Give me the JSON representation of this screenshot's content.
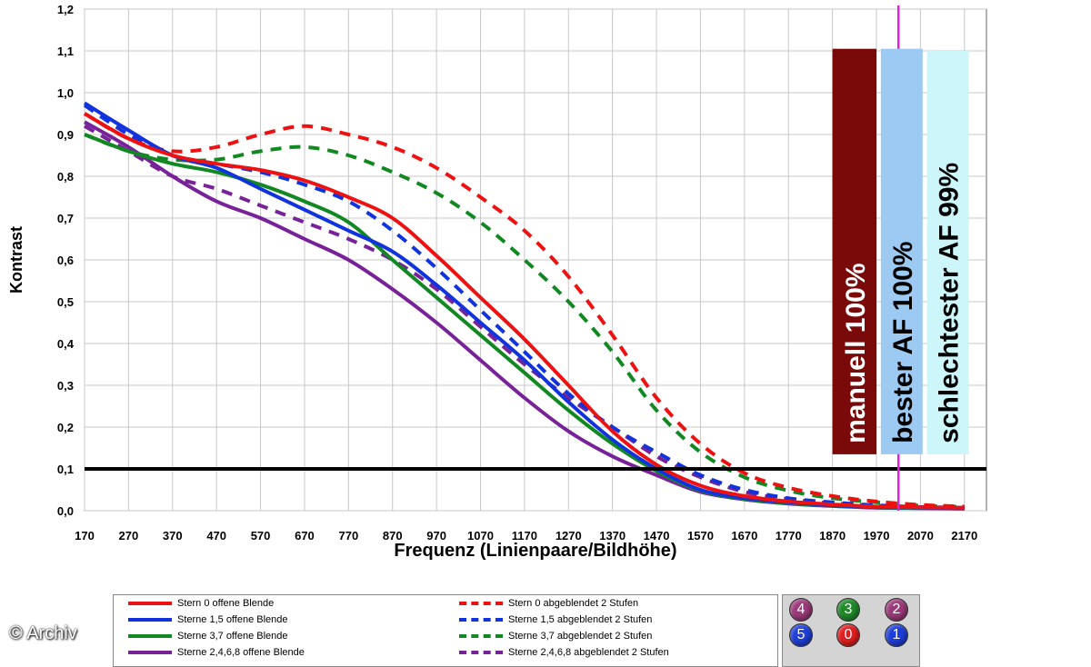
{
  "chart_data": {
    "type": "line",
    "title": "",
    "xlabel": "Frequenz (Linienpaare/Bildhöhe)",
    "ylabel": "Kontrast",
    "xlim": [
      170,
      2220
    ],
    "ylim": [
      0,
      1.2
    ],
    "x_ticks": [
      170,
      270,
      370,
      470,
      570,
      670,
      770,
      870,
      970,
      1070,
      1170,
      1270,
      1370,
      1470,
      1570,
      1670,
      1770,
      1870,
      1970,
      2070,
      2170
    ],
    "y_ticks": [
      "0,0",
      "0,1",
      "0,2",
      "0,3",
      "0,4",
      "0,5",
      "0,6",
      "0,7",
      "0,8",
      "0,9",
      "1,0",
      "1,1",
      "1,2"
    ],
    "grid": true,
    "threshold_line": 0.1,
    "vertical_marker": 2020,
    "series": [
      {
        "name": "Stern 0 offene Blende",
        "color": "#ee1111",
        "dash": false,
        "x": [
          170,
          270,
          370,
          470,
          570,
          670,
          770,
          870,
          970,
          1070,
          1170,
          1270,
          1370,
          1470,
          1570,
          1670,
          1770,
          1870,
          1970,
          2070,
          2170
        ],
        "y": [
          0.95,
          0.89,
          0.85,
          0.83,
          0.815,
          0.79,
          0.75,
          0.7,
          0.61,
          0.51,
          0.41,
          0.3,
          0.19,
          0.11,
          0.06,
          0.035,
          0.022,
          0.015,
          0.01,
          0.008,
          0.007
        ]
      },
      {
        "name": "Sterne 1,5 offene Blende",
        "color": "#1133dd",
        "dash": false,
        "x": [
          170,
          270,
          370,
          470,
          570,
          670,
          770,
          870,
          970,
          1070,
          1170,
          1270,
          1370,
          1470,
          1570,
          1670,
          1770,
          1870,
          1970,
          2070,
          2170
        ],
        "y": [
          0.975,
          0.91,
          0.85,
          0.82,
          0.77,
          0.72,
          0.67,
          0.62,
          0.54,
          0.45,
          0.36,
          0.26,
          0.17,
          0.1,
          0.05,
          0.03,
          0.02,
          0.013,
          0.009,
          0.007,
          0.006
        ]
      },
      {
        "name": "Sterne 3,7 offene Blende",
        "color": "#118822",
        "dash": false,
        "x": [
          170,
          270,
          370,
          470,
          570,
          670,
          770,
          870,
          970,
          1070,
          1170,
          1270,
          1370,
          1470,
          1570,
          1670,
          1770,
          1870,
          1970,
          2070,
          2170
        ],
        "y": [
          0.9,
          0.86,
          0.83,
          0.81,
          0.78,
          0.74,
          0.69,
          0.6,
          0.51,
          0.42,
          0.33,
          0.24,
          0.16,
          0.095,
          0.048,
          0.028,
          0.018,
          0.012,
          0.008,
          0.006,
          0.005
        ]
      },
      {
        "name": "Sterne 2,4,6,8 offene Blende",
        "color": "#772299",
        "dash": false,
        "x": [
          170,
          270,
          370,
          470,
          570,
          670,
          770,
          870,
          970,
          1070,
          1170,
          1270,
          1370,
          1470,
          1570,
          1670,
          1770,
          1870,
          1970,
          2070,
          2170
        ],
        "y": [
          0.93,
          0.87,
          0.8,
          0.74,
          0.7,
          0.65,
          0.6,
          0.53,
          0.45,
          0.36,
          0.27,
          0.19,
          0.13,
          0.085,
          0.045,
          0.027,
          0.017,
          0.011,
          0.007,
          0.006,
          0.005
        ]
      },
      {
        "name": "Stern 0 abgeblendet 2 Stufen",
        "color": "#ee1111",
        "dash": true,
        "x": [
          170,
          270,
          370,
          470,
          570,
          670,
          770,
          870,
          970,
          1070,
          1170,
          1270,
          1370,
          1470,
          1570,
          1670,
          1770,
          1870,
          1970,
          2070,
          2170
        ],
        "y": [
          0.95,
          0.89,
          0.86,
          0.87,
          0.9,
          0.92,
          0.9,
          0.87,
          0.82,
          0.75,
          0.67,
          0.56,
          0.42,
          0.27,
          0.16,
          0.09,
          0.055,
          0.035,
          0.022,
          0.014,
          0.01
        ]
      },
      {
        "name": "Sterne 1,5 abgeblendet 2 Stufen",
        "color": "#1133dd",
        "dash": true,
        "x": [
          170,
          270,
          370,
          470,
          570,
          670,
          770,
          870,
          970,
          1070,
          1170,
          1270,
          1370,
          1470,
          1570,
          1670,
          1770,
          1870,
          1970,
          2070,
          2170
        ],
        "y": [
          0.97,
          0.9,
          0.85,
          0.83,
          0.81,
          0.78,
          0.74,
          0.67,
          0.58,
          0.48,
          0.38,
          0.28,
          0.2,
          0.14,
          0.085,
          0.05,
          0.03,
          0.02,
          0.013,
          0.009,
          0.007
        ]
      },
      {
        "name": "Sterne 3,7 abgeblendet 2 Stufen",
        "color": "#118822",
        "dash": true,
        "x": [
          170,
          270,
          370,
          470,
          570,
          670,
          770,
          870,
          970,
          1070,
          1170,
          1270,
          1370,
          1470,
          1570,
          1670,
          1770,
          1870,
          1970,
          2070,
          2170
        ],
        "y": [
          0.9,
          0.86,
          0.84,
          0.84,
          0.86,
          0.87,
          0.85,
          0.81,
          0.76,
          0.69,
          0.6,
          0.5,
          0.38,
          0.24,
          0.14,
          0.08,
          0.048,
          0.03,
          0.02,
          0.012,
          0.009
        ]
      },
      {
        "name": "Sterne 2,4,6,8 abgeblendet 2 Stufen",
        "color": "#772299",
        "dash": true,
        "x": [
          170,
          270,
          370,
          470,
          570,
          670,
          770,
          870,
          970,
          1070,
          1170,
          1270,
          1370,
          1470,
          1570,
          1670,
          1770,
          1870,
          1970,
          2070,
          2170
        ],
        "y": [
          0.92,
          0.86,
          0.8,
          0.77,
          0.73,
          0.69,
          0.65,
          0.6,
          0.53,
          0.44,
          0.35,
          0.27,
          0.2,
          0.13,
          0.08,
          0.045,
          0.028,
          0.018,
          0.012,
          0.008,
          0.006
        ]
      }
    ],
    "bars": [
      {
        "label": "manuell 100%",
        "x_start": 1870,
        "x_end": 1970,
        "y_top": 1.105,
        "y_bottom": 0.135,
        "fill": "#7a0a0a",
        "text_color": "#ffffff"
      },
      {
        "label": "bester AF 100%",
        "x_start": 1980,
        "x_end": 2075,
        "y_top": 1.105,
        "y_bottom": 0.135,
        "fill": "#9dcaf2",
        "text_color": "#000000"
      },
      {
        "label": "schlechtester AF 99%",
        "x_start": 2085,
        "x_end": 2180,
        "y_top": 1.1,
        "y_bottom": 0.135,
        "fill": "#ccf6fa",
        "text_color": "#000000"
      }
    ]
  },
  "stars": [
    {
      "label": "4",
      "color": "#9b3a7a"
    },
    {
      "label": "3",
      "color": "#1f8a2a"
    },
    {
      "label": "2",
      "color": "#9b3a7a"
    },
    {
      "label": "5",
      "color": "#1f3ed8"
    },
    {
      "label": "0",
      "color": "#e01e1e"
    },
    {
      "label": "1",
      "color": "#1f3ed8"
    }
  ],
  "copyright": "© Archiv"
}
